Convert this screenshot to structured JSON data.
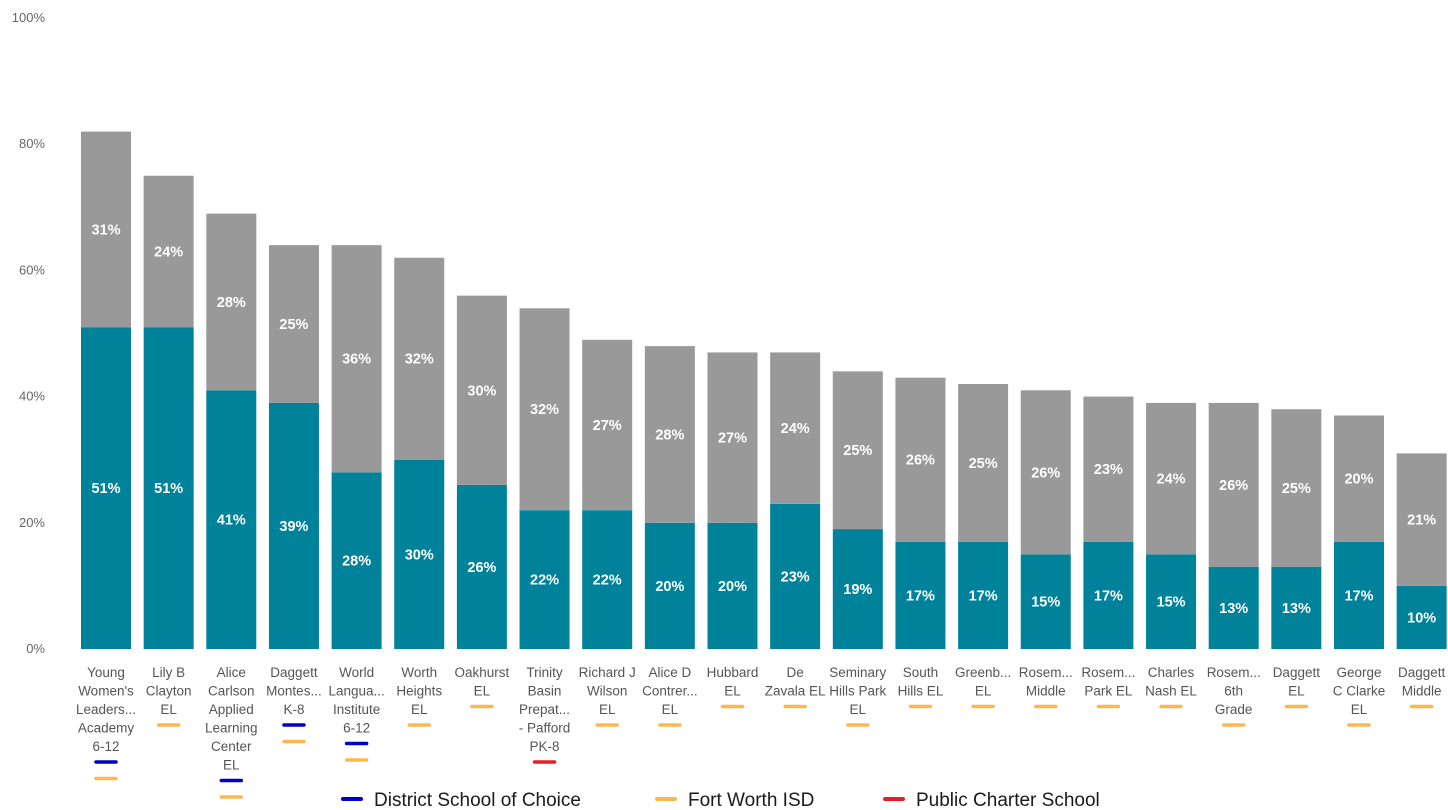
{
  "chart_data": {
    "type": "bar",
    "stacked": true,
    "ylim": [
      0,
      100
    ],
    "y_ticks": [
      "0%",
      "20%",
      "40%",
      "60%",
      "80%",
      "100%"
    ],
    "y_tick_values": [
      0,
      20,
      40,
      60,
      80,
      100
    ],
    "grid": false,
    "legend_position": "bottom",
    "categories": [
      [
        "Young",
        "Women's",
        "Leaders...",
        "Academy",
        "6-12"
      ],
      [
        "Lily B",
        "Clayton",
        "EL"
      ],
      [
        "Alice",
        "Carlson",
        "Applied",
        "Learning",
        "Center",
        "EL"
      ],
      [
        "Daggett",
        "Montes...",
        "K-8"
      ],
      [
        "World",
        "Langua...",
        "Institute",
        "6-12"
      ],
      [
        "Worth",
        "Heights",
        "EL"
      ],
      [
        "Oakhurst",
        "EL"
      ],
      [
        "Trinity",
        "Basin",
        "Prepat...",
        "- Pafford",
        "PK-8"
      ],
      [
        "Richard J",
        "Wilson",
        "EL"
      ],
      [
        "Alice D",
        "Contrer...",
        "EL"
      ],
      [
        "Hubbard",
        "EL"
      ],
      [
        "De",
        "Zavala EL"
      ],
      [
        "Seminary",
        "Hills Park",
        "EL"
      ],
      [
        "South",
        "Hills EL"
      ],
      [
        "Greenb...",
        "EL"
      ],
      [
        "Rosem...",
        "Middle"
      ],
      [
        "Rosem...",
        "Park EL"
      ],
      [
        "Charles",
        "Nash EL"
      ],
      [
        "Rosem...",
        "6th",
        "Grade"
      ],
      [
        "Daggett",
        "EL"
      ],
      [
        "George",
        "C Clarke",
        "EL"
      ],
      [
        "Daggett",
        "Middle"
      ]
    ],
    "series": [
      {
        "color": "#00829B",
        "values": [
          51,
          51,
          41,
          39,
          28,
          30,
          26,
          22,
          22,
          20,
          20,
          23,
          19,
          17,
          17,
          15,
          17,
          15,
          13,
          13,
          17,
          10
        ],
        "labels": [
          "51%",
          "51%",
          "41%",
          "39%",
          "28%",
          "30%",
          "26%",
          "22%",
          "22%",
          "20%",
          "20%",
          "23%",
          "19%",
          "17%",
          "17%",
          "15%",
          "17%",
          "15%",
          "13%",
          "13%",
          "17%",
          "10%"
        ]
      },
      {
        "color": "#999999",
        "values": [
          31,
          24,
          28,
          25,
          36,
          32,
          30,
          32,
          27,
          28,
          27,
          24,
          25,
          26,
          25,
          26,
          23,
          24,
          26,
          25,
          20,
          21
        ],
        "labels": [
          "31%",
          "24%",
          "28%",
          "25%",
          "36%",
          "32%",
          "30%",
          "32%",
          "27%",
          "28%",
          "27%",
          "24%",
          "25%",
          "26%",
          "25%",
          "26%",
          "23%",
          "24%",
          "26%",
          "25%",
          "20%",
          "21%"
        ]
      }
    ],
    "school_types": [
      [
        "District School of Choice",
        "Fort Worth ISD"
      ],
      [
        "Fort Worth ISD"
      ],
      [
        "District School of Choice",
        "Fort Worth ISD"
      ],
      [
        "District School of Choice",
        "Fort Worth ISD"
      ],
      [
        "District School of Choice",
        "Fort Worth ISD"
      ],
      [
        "Fort Worth ISD"
      ],
      [
        "Fort Worth ISD"
      ],
      [
        "Public Charter School"
      ],
      [
        "Fort Worth ISD"
      ],
      [
        "Fort Worth ISD"
      ],
      [
        "Fort Worth ISD"
      ],
      [
        "Fort Worth ISD"
      ],
      [
        "Fort Worth ISD"
      ],
      [
        "Fort Worth ISD"
      ],
      [
        "Fort Worth ISD"
      ],
      [
        "Fort Worth ISD"
      ],
      [
        "Fort Worth ISD"
      ],
      [
        "Fort Worth ISD"
      ],
      [
        "Fort Worth ISD"
      ],
      [
        "Fort Worth ISD"
      ],
      [
        "Fort Worth ISD"
      ],
      [
        "Fort Worth ISD"
      ]
    ],
    "legend": [
      {
        "label": "District School of Choice",
        "color": "#0000CC"
      },
      {
        "label": "Fort Worth ISD",
        "color": "#FFB74D"
      },
      {
        "label": "Public Charter School",
        "color": "#E81E25"
      }
    ]
  }
}
